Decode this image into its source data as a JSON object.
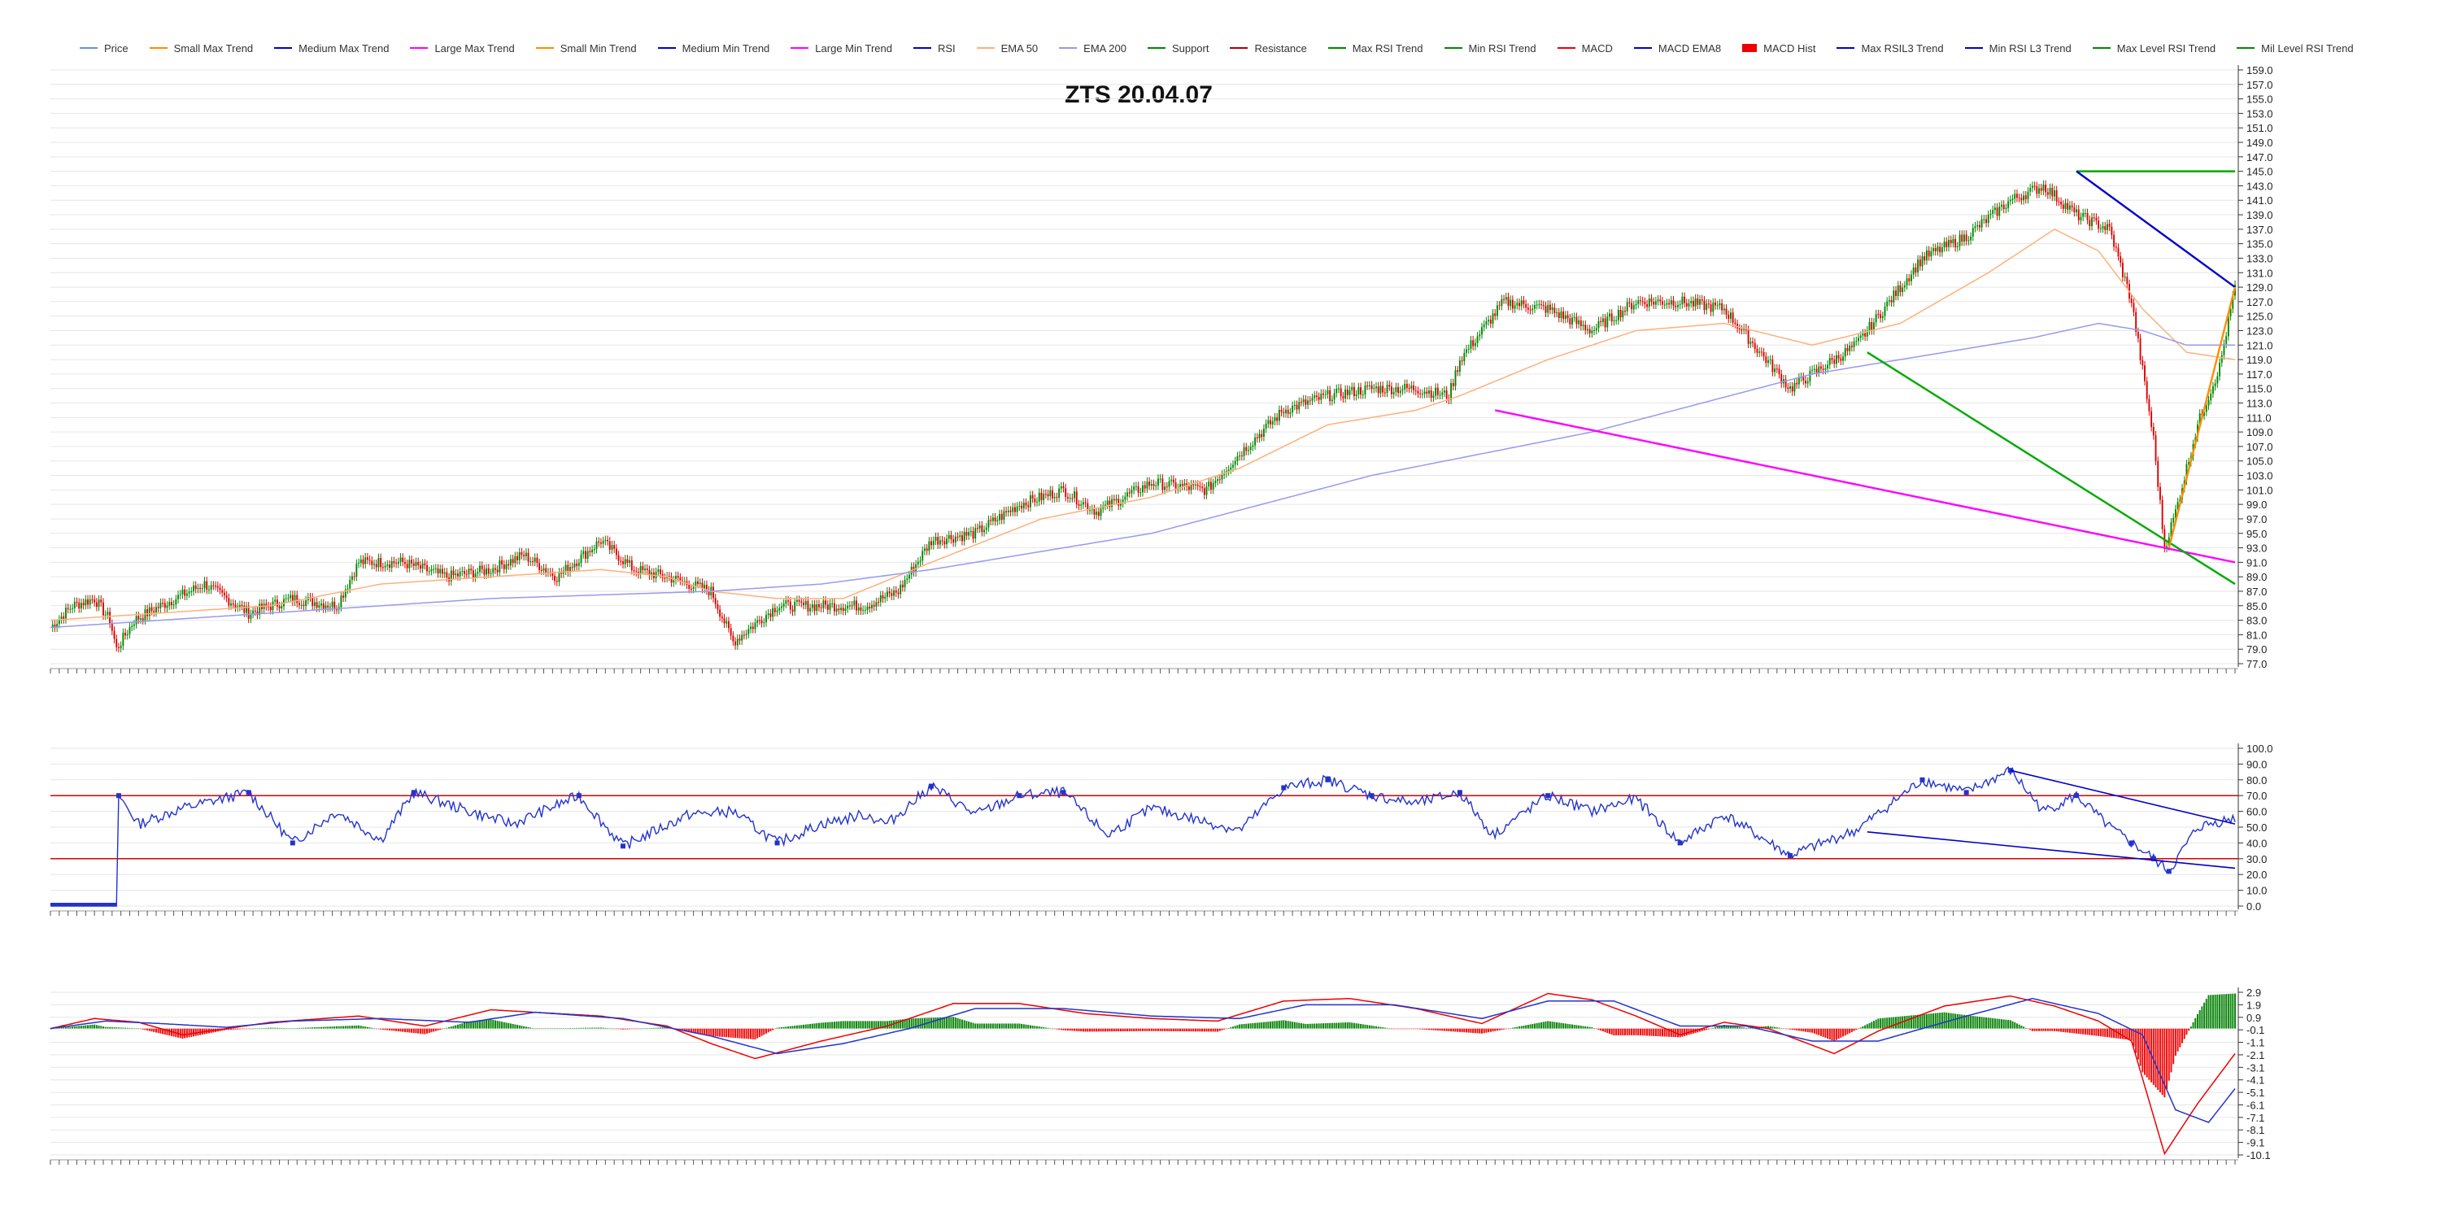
{
  "title": "ZTS 20.04.07",
  "legend": [
    {
      "name": "Price",
      "color": "#6699cc"
    },
    {
      "name": "Small Max Trend",
      "color": "#ff8c00"
    },
    {
      "name": "Medium Max Trend",
      "color": "#0000cc"
    },
    {
      "name": "Large Max Trend",
      "color": "#ff00ff"
    },
    {
      "name": "Small Min Trend",
      "color": "#ff8c00"
    },
    {
      "name": "Medium Min Trend",
      "color": "#0000cc"
    },
    {
      "name": "Large Min Trend",
      "color": "#ff00ff"
    },
    {
      "name": "RSI",
      "color": "#0000cc"
    },
    {
      "name": "EMA 50",
      "color": "#ffb07a"
    },
    {
      "name": "EMA 200",
      "color": "#9999ee"
    },
    {
      "name": "Support",
      "color": "#008800"
    },
    {
      "name": "Resistance",
      "color": "#aa0000"
    },
    {
      "name": "Max RSI Trend",
      "color": "#008800"
    },
    {
      "name": "Min RSI Trend",
      "color": "#008800"
    },
    {
      "name": "MACD",
      "color": "#ee0000"
    },
    {
      "name": "MACD EMA8",
      "color": "#0000cc"
    },
    {
      "name": "MACD Hist",
      "color": "#ee0000",
      "box": true
    },
    {
      "name": "Max RSIL3 Trend",
      "color": "#0000cc"
    },
    {
      "name": "Min RSI L3 Trend",
      "color": "#0000cc"
    },
    {
      "name": "Max Level RSI Trend",
      "color": "#008800"
    },
    {
      "name": "Mil Level RSI Trend",
      "color": "#008800"
    }
  ],
  "chart_data": [
    {
      "type": "line",
      "name": "price-panel",
      "ylim": [
        77,
        159
      ],
      "yticks": [
        "159.0",
        "157.0",
        "155.0",
        "153.0",
        "151.0",
        "149.0",
        "147.0",
        "145.0",
        "143.0",
        "141.0",
        "139.0",
        "137.0",
        "135.0",
        "133.0",
        "131.0",
        "129.0",
        "127.0",
        "125.0",
        "123.0",
        "121.0",
        "119.0",
        "117.0",
        "115.0",
        "113.0",
        "111.0",
        "109.0",
        "107.0",
        "105.0",
        "103.0",
        "101.0",
        "99.0",
        "97.0",
        "95.0",
        "93.0",
        "91.0",
        "89.0",
        "87.0",
        "85.0",
        "83.0",
        "81.0",
        "79.0",
        "77.0"
      ],
      "close_anchors": [
        [
          0,
          82
        ],
        [
          10,
          85
        ],
        [
          20,
          86
        ],
        [
          27,
          83
        ],
        [
          30,
          79
        ],
        [
          38,
          83
        ],
        [
          50,
          85
        ],
        [
          70,
          88
        ],
        [
          90,
          84
        ],
        [
          110,
          86
        ],
        [
          130,
          85
        ],
        [
          140,
          91
        ],
        [
          160,
          91
        ],
        [
          180,
          89
        ],
        [
          200,
          90
        ],
        [
          215,
          92
        ],
        [
          230,
          89
        ],
        [
          250,
          94
        ],
        [
          265,
          90
        ],
        [
          280,
          89
        ],
        [
          300,
          87
        ],
        [
          310,
          80
        ],
        [
          330,
          85
        ],
        [
          350,
          85
        ],
        [
          370,
          85
        ],
        [
          385,
          87
        ],
        [
          400,
          94
        ],
        [
          420,
          95
        ],
        [
          440,
          99
        ],
        [
          460,
          101
        ],
        [
          475,
          98
        ],
        [
          500,
          102
        ],
        [
          525,
          101
        ],
        [
          540,
          106
        ],
        [
          560,
          112
        ],
        [
          580,
          114
        ],
        [
          600,
          115
        ],
        [
          620,
          115
        ],
        [
          635,
          114
        ],
        [
          640,
          119
        ],
        [
          660,
          127
        ],
        [
          680,
          126
        ],
        [
          700,
          123
        ],
        [
          720,
          127
        ],
        [
          740,
          127
        ],
        [
          760,
          126
        ],
        [
          790,
          115
        ],
        [
          820,
          121
        ],
        [
          850,
          133
        ],
        [
          870,
          136
        ],
        [
          890,
          141
        ],
        [
          905,
          143
        ],
        [
          920,
          139
        ],
        [
          935,
          137
        ],
        [
          945,
          127
        ],
        [
          955,
          108
        ],
        [
          960,
          93
        ],
        [
          965,
          98
        ],
        [
          975,
          110
        ],
        [
          985,
          118
        ],
        [
          992,
          129
        ]
      ],
      "ema50_anchors": [
        [
          0,
          83
        ],
        [
          50,
          84
        ],
        [
          100,
          85
        ],
        [
          150,
          88
        ],
        [
          200,
          89
        ],
        [
          250,
          90
        ],
        [
          280,
          89
        ],
        [
          300,
          87
        ],
        [
          330,
          86
        ],
        [
          360,
          86
        ],
        [
          400,
          91
        ],
        [
          450,
          97
        ],
        [
          500,
          100
        ],
        [
          540,
          104
        ],
        [
          580,
          110
        ],
        [
          620,
          112
        ],
        [
          640,
          114
        ],
        [
          680,
          119
        ],
        [
          720,
          123
        ],
        [
          760,
          124
        ],
        [
          800,
          121
        ],
        [
          840,
          124
        ],
        [
          880,
          131
        ],
        [
          910,
          137
        ],
        [
          930,
          134
        ],
        [
          950,
          126
        ],
        [
          970,
          120
        ],
        [
          992,
          119
        ]
      ],
      "ema200_anchors": [
        [
          0,
          82
        ],
        [
          100,
          84
        ],
        [
          200,
          86
        ],
        [
          300,
          87
        ],
        [
          350,
          88
        ],
        [
          400,
          90
        ],
        [
          500,
          95
        ],
        [
          600,
          103
        ],
        [
          700,
          109
        ],
        [
          800,
          117
        ],
        [
          900,
          122
        ],
        [
          930,
          124
        ],
        [
          950,
          123
        ],
        [
          970,
          121
        ],
        [
          992,
          121
        ]
      ],
      "trendlines": [
        {
          "name": "support-horizontal",
          "color": "#00aa00",
          "points": [
            [
              920,
              145
            ],
            [
              992,
              145
            ]
          ]
        },
        {
          "name": "medium-max-trend",
          "color": "#0000cc",
          "points": [
            [
              920,
              145
            ],
            [
              992,
              129
            ]
          ]
        },
        {
          "name": "large-min-trend",
          "color": "#ff00ff",
          "points": [
            [
              656,
              112
            ],
            [
              992,
              91
            ]
          ]
        },
        {
          "name": "min-rsi-trend-price",
          "color": "#00aa00",
          "points": [
            [
              825,
              120
            ],
            [
              992,
              88
            ]
          ]
        },
        {
          "name": "small-min-trend",
          "color": "#ff8c00",
          "points": [
            [
              962,
              93
            ],
            [
              992,
              129
            ]
          ]
        }
      ]
    },
    {
      "type": "line",
      "name": "rsi-panel",
      "ylim": [
        0,
        100
      ],
      "yticks": [
        "100.0",
        "90.0",
        "80.0",
        "70.0",
        "60.0",
        "50.0",
        "40.0",
        "30.0",
        "20.0",
        "10.0",
        "0.0"
      ],
      "levels": [
        70,
        30
      ],
      "rsi_anchors": [
        [
          0,
          0
        ],
        [
          30,
          0
        ],
        [
          31,
          70
        ],
        [
          40,
          52
        ],
        [
          60,
          62
        ],
        [
          90,
          72
        ],
        [
          110,
          40
        ],
        [
          130,
          60
        ],
        [
          150,
          42
        ],
        [
          165,
          72
        ],
        [
          190,
          60
        ],
        [
          210,
          52
        ],
        [
          240,
          70
        ],
        [
          260,
          38
        ],
        [
          290,
          58
        ],
        [
          310,
          60
        ],
        [
          330,
          40
        ],
        [
          350,
          52
        ],
        [
          370,
          58
        ],
        [
          380,
          52
        ],
        [
          400,
          76
        ],
        [
          420,
          58
        ],
        [
          440,
          70
        ],
        [
          460,
          72
        ],
        [
          480,
          45
        ],
        [
          500,
          62
        ],
        [
          520,
          55
        ],
        [
          540,
          48
        ],
        [
          560,
          75
        ],
        [
          580,
          80
        ],
        [
          600,
          70
        ],
        [
          620,
          65
        ],
        [
          640,
          72
        ],
        [
          655,
          45
        ],
        [
          680,
          70
        ],
        [
          700,
          60
        ],
        [
          720,
          68
        ],
        [
          740,
          40
        ],
        [
          760,
          58
        ],
        [
          790,
          32
        ],
        [
          820,
          48
        ],
        [
          850,
          80
        ],
        [
          870,
          72
        ],
        [
          890,
          86
        ],
        [
          905,
          60
        ],
        [
          920,
          70
        ],
        [
          935,
          50
        ],
        [
          945,
          40
        ],
        [
          955,
          30
        ],
        [
          962,
          22
        ],
        [
          975,
          50
        ],
        [
          992,
          56
        ]
      ],
      "trendlines": [
        {
          "name": "max-rsil3-trend",
          "color": "#0000cc",
          "points": [
            [
              890,
              86
            ],
            [
              992,
              52
            ]
          ]
        },
        {
          "name": "min-rsi-l3-trend",
          "color": "#0000cc",
          "points": [
            [
              825,
              47
            ],
            [
              992,
              24
            ]
          ]
        }
      ]
    },
    {
      "type": "line",
      "name": "macd-panel",
      "ylim": [
        -10.1,
        2.9
      ],
      "yticks": [
        "2.9",
        "1.9",
        "0.9",
        "-0.1",
        "-1.1",
        "-2.1",
        "-3.1",
        "-4.1",
        "-5.1",
        "-6.1",
        "-7.1",
        "-8.1",
        "-9.1",
        "-10.1"
      ],
      "macd_anchors": [
        [
          0,
          0
        ],
        [
          20,
          0.8
        ],
        [
          40,
          0.5
        ],
        [
          60,
          -0.5
        ],
        [
          80,
          0
        ],
        [
          100,
          0.5
        ],
        [
          140,
          1.0
        ],
        [
          170,
          0.2
        ],
        [
          200,
          1.5
        ],
        [
          250,
          1.0
        ],
        [
          280,
          0.2
        ],
        [
          300,
          -1.2
        ],
        [
          320,
          -2.4
        ],
        [
          350,
          -1.0
        ],
        [
          380,
          0.2
        ],
        [
          410,
          2.0
        ],
        [
          440,
          2.0
        ],
        [
          470,
          1.2
        ],
        [
          500,
          0.8
        ],
        [
          530,
          0.6
        ],
        [
          560,
          2.2
        ],
        [
          590,
          2.4
        ],
        [
          620,
          1.6
        ],
        [
          650,
          0.4
        ],
        [
          680,
          2.8
        ],
        [
          700,
          2.3
        ],
        [
          720,
          1.0
        ],
        [
          740,
          -0.5
        ],
        [
          760,
          0.5
        ],
        [
          780,
          0
        ],
        [
          810,
          -2.0
        ],
        [
          830,
          -0.2
        ],
        [
          860,
          1.8
        ],
        [
          890,
          2.6
        ],
        [
          910,
          1.8
        ],
        [
          930,
          0.6
        ],
        [
          945,
          -1.0
        ],
        [
          960,
          -10.0
        ],
        [
          975,
          -6.0
        ],
        [
          992,
          -2.0
        ]
      ],
      "signal_anchors": [
        [
          0,
          0
        ],
        [
          25,
          0.6
        ],
        [
          50,
          0.4
        ],
        [
          80,
          0.1
        ],
        [
          110,
          0.6
        ],
        [
          150,
          0.8
        ],
        [
          190,
          0.5
        ],
        [
          220,
          1.3
        ],
        [
          260,
          0.8
        ],
        [
          300,
          -0.6
        ],
        [
          330,
          -2.0
        ],
        [
          360,
          -1.2
        ],
        [
          390,
          0
        ],
        [
          420,
          1.6
        ],
        [
          460,
          1.6
        ],
        [
          500,
          1.0
        ],
        [
          540,
          0.8
        ],
        [
          570,
          1.9
        ],
        [
          610,
          1.9
        ],
        [
          650,
          0.8
        ],
        [
          680,
          2.2
        ],
        [
          710,
          2.2
        ],
        [
          740,
          0.2
        ],
        [
          770,
          0.2
        ],
        [
          800,
          -1.0
        ],
        [
          830,
          -1.0
        ],
        [
          870,
          1.0
        ],
        [
          900,
          2.4
        ],
        [
          930,
          1.2
        ],
        [
          950,
          -0.5
        ],
        [
          965,
          -6.5
        ],
        [
          980,
          -7.5
        ],
        [
          992,
          -4.8
        ]
      ]
    }
  ]
}
